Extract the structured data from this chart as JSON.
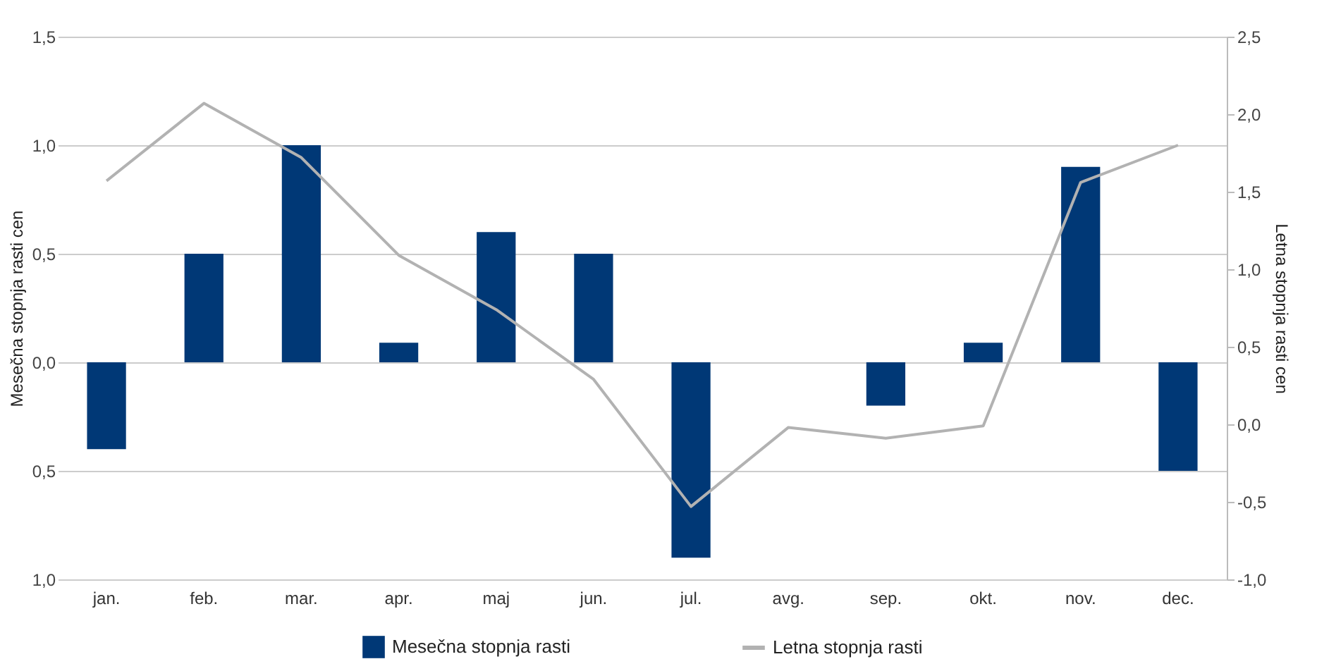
{
  "chart_data": {
    "type": "bar",
    "ylabel": "Mesečna stopnja rasti cen",
    "y2label": "Letna stopnja rasti cen",
    "categories": [
      "jan.",
      "feb.",
      "mar.",
      "apr.",
      "maj",
      "jun.",
      "jul.",
      "avg.",
      "sep.",
      "okt.",
      "nov.",
      "dec."
    ],
    "series": [
      {
        "name": "Mesečna stopnja rasti",
        "color": "#003876",
        "values": [
          -0.4,
          0.5,
          1.0,
          0.09,
          0.6,
          0.5,
          -0.9,
          0,
          -0.2,
          0.09,
          0.9,
          -0.5
        ]
      },
      {
        "name": "Letna stopnja rasti",
        "type": "line",
        "axis": "y2",
        "color": "#b2b2b2",
        "values": [
          1.57,
          2.07,
          1.72,
          1.09,
          0.74,
          0.29,
          -0.53,
          -0.02,
          -0.09,
          -0.01,
          1.56,
          1.8
        ]
      }
    ],
    "ylim": [
      -1.0,
      1.5
    ],
    "yticks": [
      {
        "value": -1.0,
        "label": "1,0"
      },
      {
        "value": -0.5,
        "label": "0,5"
      },
      {
        "value": 0,
        "label": "0,0"
      },
      {
        "value": 0.5,
        "label": "0,5"
      },
      {
        "value": 1.0,
        "label": "1,0"
      },
      {
        "value": 1.5,
        "label": "1,5"
      }
    ],
    "y2lim": [
      -1.0,
      2.5
    ],
    "y2ticks": [
      {
        "value": -1.0,
        "label": "-1,0"
      },
      {
        "value": -0.5,
        "label": "-0,5"
      },
      {
        "value": 0,
        "label": "0,0"
      },
      {
        "value": 0.5,
        "label": "0,5"
      },
      {
        "value": 1.0,
        "label": "1,0"
      },
      {
        "value": 1.5,
        "label": "1,5"
      },
      {
        "value": 2.0,
        "label": "2,0"
      },
      {
        "value": 2.5,
        "label": "2,5"
      }
    ],
    "grid": "y",
    "legend": "bottom",
    "marker": "none",
    "line_style": "solid"
  }
}
